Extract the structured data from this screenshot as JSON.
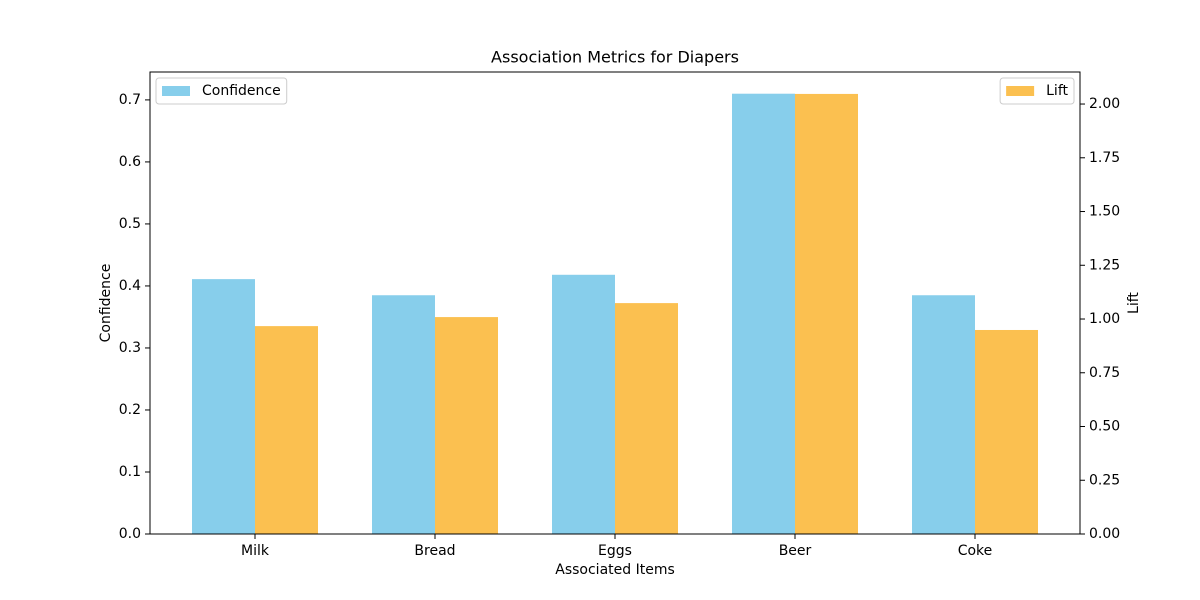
{
  "chart_data": {
    "type": "bar",
    "title": "Association Metrics for Diapers",
    "x_label": "Associated Items",
    "y_label": "Confidence",
    "y2_label": "Lift",
    "categories": [
      "Milk",
      "Bread",
      "Eggs",
      "Beer",
      "Coke"
    ],
    "series": [
      {
        "name": "Confidence",
        "color": "#87ceeb",
        "values": [
          0.411,
          0.385,
          0.418,
          0.71,
          0.385
        ],
        "legend": "upper left"
      },
      {
        "name": "Lift",
        "color": "#fbc050",
        "axis": "y2",
        "values": [
          0.967,
          1.009,
          1.074,
          2.047,
          0.949
        ],
        "legend": "upper right"
      }
    ],
    "ylim": [
      0,
      0.745
    ],
    "yticks": [
      {
        "value": 0,
        "label": "0.0"
      },
      0.1,
      0.2,
      0.3,
      0.4,
      0.5,
      0.6,
      0.7
    ],
    "y2lim": [
      0,
      2.149
    ],
    "y2ticks": [
      {
        "value": 0,
        "label": "0.00"
      },
      0.25,
      {
        "value": 0.5,
        "label": "0.50"
      },
      0.75,
      {
        "value": 1,
        "label": "1.00"
      },
      1.25,
      {
        "value": 1.5,
        "label": "1.50"
      },
      1.75,
      {
        "value": 2,
        "label": "2.00"
      }
    ],
    "grid": false
  }
}
